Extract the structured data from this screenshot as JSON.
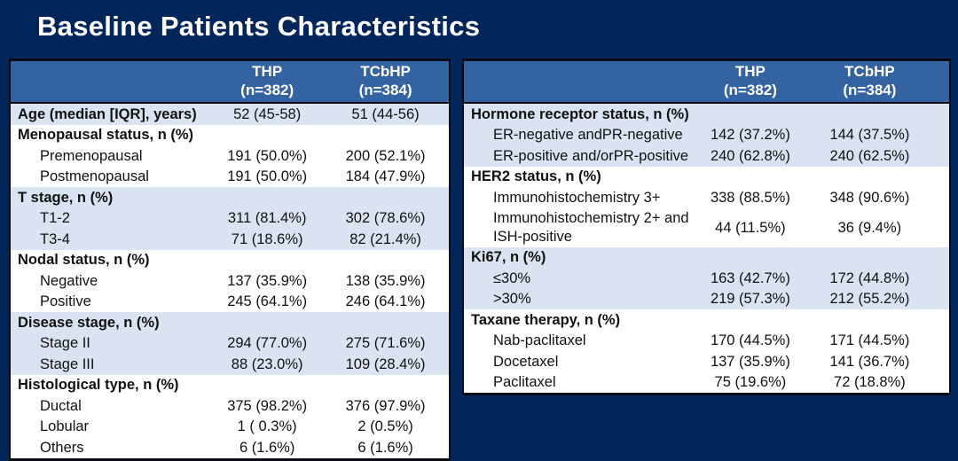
{
  "title": "Baseline Patients Characteristics",
  "colors": {
    "background": "#03265A",
    "table_header_bg": "#3463A2",
    "table_header_text": "#FFFFFF",
    "row_shaded_bg": "#DAE3F1",
    "row_plain_bg": "#FFFFFF",
    "body_text": "#111111",
    "border": "#0A0A12"
  },
  "tables": [
    {
      "name": "baseline-characteristics-left",
      "columns": [
        "THP\n(n=382)",
        "TCbHP\n(n=384)"
      ],
      "rows": [
        {
          "label": "Age (median [IQR], years)",
          "thp": "52 (45-58)",
          "tcbhp": "51 (44-56)",
          "bold": true,
          "indent": false,
          "shade": true
        },
        {
          "label": "Menopausal status, n (%)",
          "thp": "",
          "tcbhp": "",
          "bold": true,
          "indent": false,
          "shade": false
        },
        {
          "label": "Premenopausal",
          "thp": "191 (50.0%)",
          "tcbhp": "200 (52.1%)",
          "bold": false,
          "indent": true,
          "shade": false
        },
        {
          "label": "Postmenopausal",
          "thp": "191 (50.0%)",
          "tcbhp": "184 (47.9%)",
          "bold": false,
          "indent": true,
          "shade": false
        },
        {
          "label": "T stage, n (%)",
          "thp": "",
          "tcbhp": "",
          "bold": true,
          "indent": false,
          "shade": true
        },
        {
          "label": "T1-2",
          "thp": "311 (81.4%)",
          "tcbhp": "302 (78.6%)",
          "bold": false,
          "indent": true,
          "shade": true
        },
        {
          "label": "T3-4",
          "thp": "71 (18.6%)",
          "tcbhp": "82 (21.4%)",
          "bold": false,
          "indent": true,
          "shade": true
        },
        {
          "label": "Nodal status, n (%)",
          "thp": "",
          "tcbhp": "",
          "bold": true,
          "indent": false,
          "shade": false
        },
        {
          "label": "Negative",
          "thp": "137 (35.9%)",
          "tcbhp": "138 (35.9%)",
          "bold": false,
          "indent": true,
          "shade": false
        },
        {
          "label": "Positive",
          "thp": "245 (64.1%)",
          "tcbhp": "246 (64.1%)",
          "bold": false,
          "indent": true,
          "shade": false
        },
        {
          "label": "Disease stage, n (%)",
          "thp": "",
          "tcbhp": "",
          "bold": true,
          "indent": false,
          "shade": true
        },
        {
          "label": "Stage II",
          "thp": "294 (77.0%)",
          "tcbhp": "275 (71.6%)",
          "bold": false,
          "indent": true,
          "shade": true
        },
        {
          "label": "Stage III",
          "thp": "88 (23.0%)",
          "tcbhp": "109 (28.4%)",
          "bold": false,
          "indent": true,
          "shade": true
        },
        {
          "label": "Histological type, n (%)",
          "thp": "",
          "tcbhp": "",
          "bold": true,
          "indent": false,
          "shade": false
        },
        {
          "label": "Ductal",
          "thp": "375 (98.2%)",
          "tcbhp": "376 (97.9%)",
          "bold": false,
          "indent": true,
          "shade": false
        },
        {
          "label": "Lobular",
          "thp": "1 ( 0.3%)",
          "tcbhp": "2 (0.5%)",
          "bold": false,
          "indent": true,
          "shade": false
        },
        {
          "label": "Others",
          "thp": "6 (1.6%)",
          "tcbhp": "6 (1.6%)",
          "bold": false,
          "indent": true,
          "shade": false
        }
      ]
    },
    {
      "name": "baseline-characteristics-right",
      "columns": [
        "THP\n(n=382)",
        "TCbHP\n(n=384)"
      ],
      "rows": [
        {
          "label": "Hormone receptor status, n (%)",
          "thp": "",
          "tcbhp": "",
          "bold": true,
          "indent": false,
          "shade": true
        },
        {
          "label": "ER-negative andPR-negative",
          "thp": "142 (37.2%)",
          "tcbhp": "144 (37.5%)",
          "bold": false,
          "indent": true,
          "shade": true
        },
        {
          "label": "ER-positive and/orPR-positive",
          "thp": "240 (62.8%)",
          "tcbhp": "240 (62.5%)",
          "bold": false,
          "indent": true,
          "shade": true
        },
        {
          "label": "HER2 status, n (%)",
          "thp": "",
          "tcbhp": "",
          "bold": true,
          "indent": false,
          "shade": false
        },
        {
          "label": "Immunohistochemistry 3+",
          "thp": "338 (88.5%)",
          "tcbhp": "348 (90.6%)",
          "bold": false,
          "indent": true,
          "shade": false
        },
        {
          "label": "Immunohistochemistry 2+ and\nISH-positive",
          "thp": "44 (11.5%)",
          "tcbhp": "36 (9.4%)",
          "bold": false,
          "indent": true,
          "shade": false
        },
        {
          "label": "Ki67, n (%)",
          "thp": "",
          "tcbhp": "",
          "bold": true,
          "indent": false,
          "shade": true
        },
        {
          "label": "≤30%",
          "thp": "163 (42.7%)",
          "tcbhp": "172 (44.8%)",
          "bold": false,
          "indent": true,
          "shade": true
        },
        {
          "label": ">30%",
          "thp": "219 (57.3%)",
          "tcbhp": "212 (55.2%)",
          "bold": false,
          "indent": true,
          "shade": true
        },
        {
          "label": "Taxane therapy, n (%)",
          "thp": "",
          "tcbhp": "",
          "bold": true,
          "indent": false,
          "shade": false
        },
        {
          "label": "Nab-paclitaxel",
          "thp": "170 (44.5%)",
          "tcbhp": "171 (44.5%)",
          "bold": false,
          "indent": true,
          "shade": false
        },
        {
          "label": "Docetaxel",
          "thp": "137 (35.9%)",
          "tcbhp": "141 (36.7%)",
          "bold": false,
          "indent": true,
          "shade": false
        },
        {
          "label": "Paclitaxel",
          "thp": "75 (19.6%)",
          "tcbhp": "72 (18.8%)",
          "bold": false,
          "indent": true,
          "shade": false
        }
      ]
    }
  ]
}
